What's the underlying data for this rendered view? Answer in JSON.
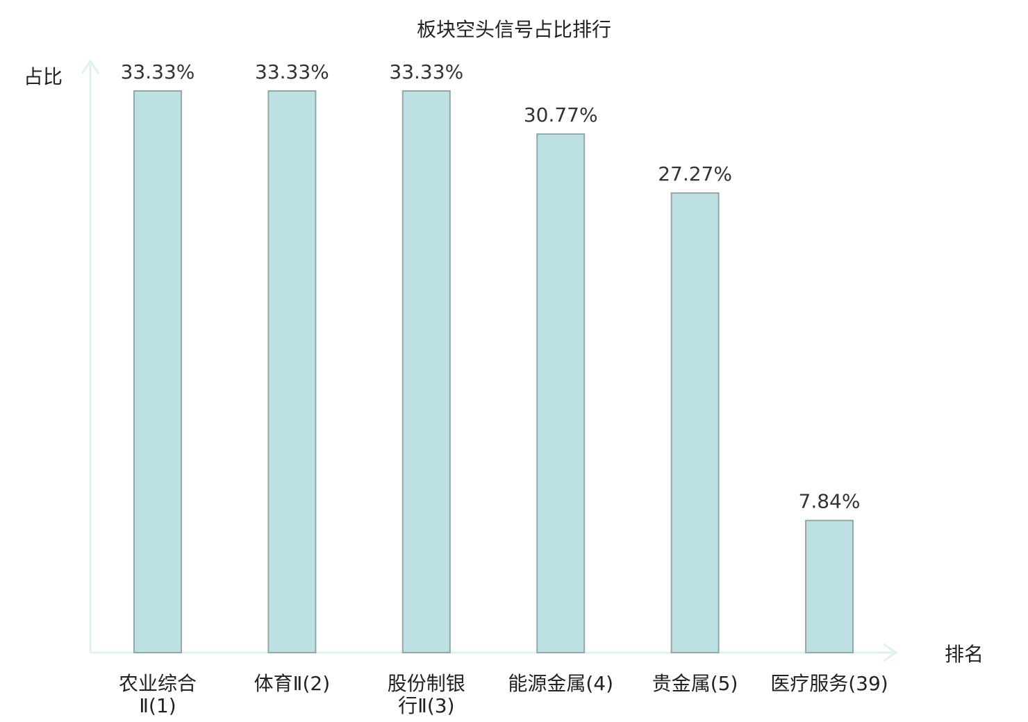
{
  "chart_data": {
    "type": "bar",
    "title": "板块空头信号占比排行",
    "xlabel": "排名",
    "ylabel": "占比",
    "categories": [
      [
        "农业综合",
        "Ⅱ(1)"
      ],
      [
        "体育Ⅱ(2)"
      ],
      [
        "股份制银",
        "行Ⅱ(3)"
      ],
      [
        "能源金属(4)"
      ],
      [
        "贵金属(5)"
      ],
      [
        "医疗服务(39)"
      ]
    ],
    "values": [
      33.33,
      33.33,
      33.33,
      30.77,
      27.27,
      7.84
    ],
    "value_labels": [
      "33.33%",
      "33.33%",
      "33.33%",
      "30.77%",
      "27.27%",
      "7.84%"
    ],
    "highlight_index": 5,
    "ylim": [
      0,
      33.33
    ],
    "grid": false,
    "colors": {
      "bar_fill": "#bde0e3",
      "bar_stroke": "#8fa9a9",
      "axis": "#e0f2ef",
      "highlight_text": "#e0201b",
      "text": "#222222"
    }
  }
}
